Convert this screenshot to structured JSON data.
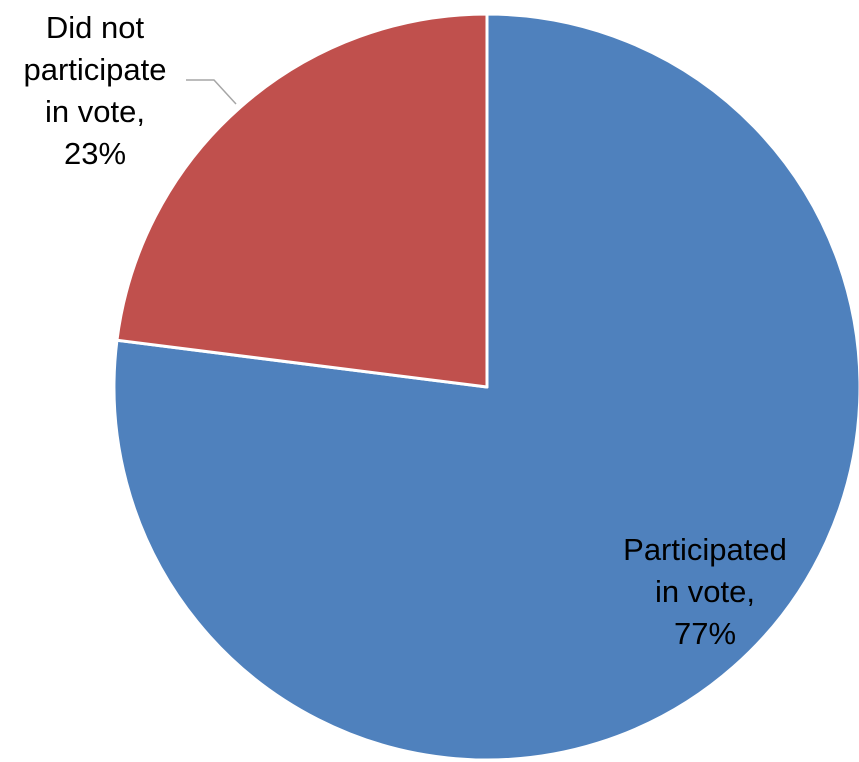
{
  "chart_data": {
    "type": "pie",
    "slices": [
      {
        "name": "Participated in vote",
        "value": 77,
        "color": "#4F81BD",
        "label_lines": [
          "Participated",
          "in vote,",
          "77%"
        ]
      },
      {
        "name": "Did not participate in vote",
        "value": 23,
        "color": "#C0504D",
        "label_lines": [
          "Did not",
          "participate",
          "in vote,",
          "23%"
        ]
      }
    ],
    "start_angle_deg": 0,
    "direction": "clockwise",
    "legend": "none",
    "leader_line_color": "#A6A6A6"
  }
}
